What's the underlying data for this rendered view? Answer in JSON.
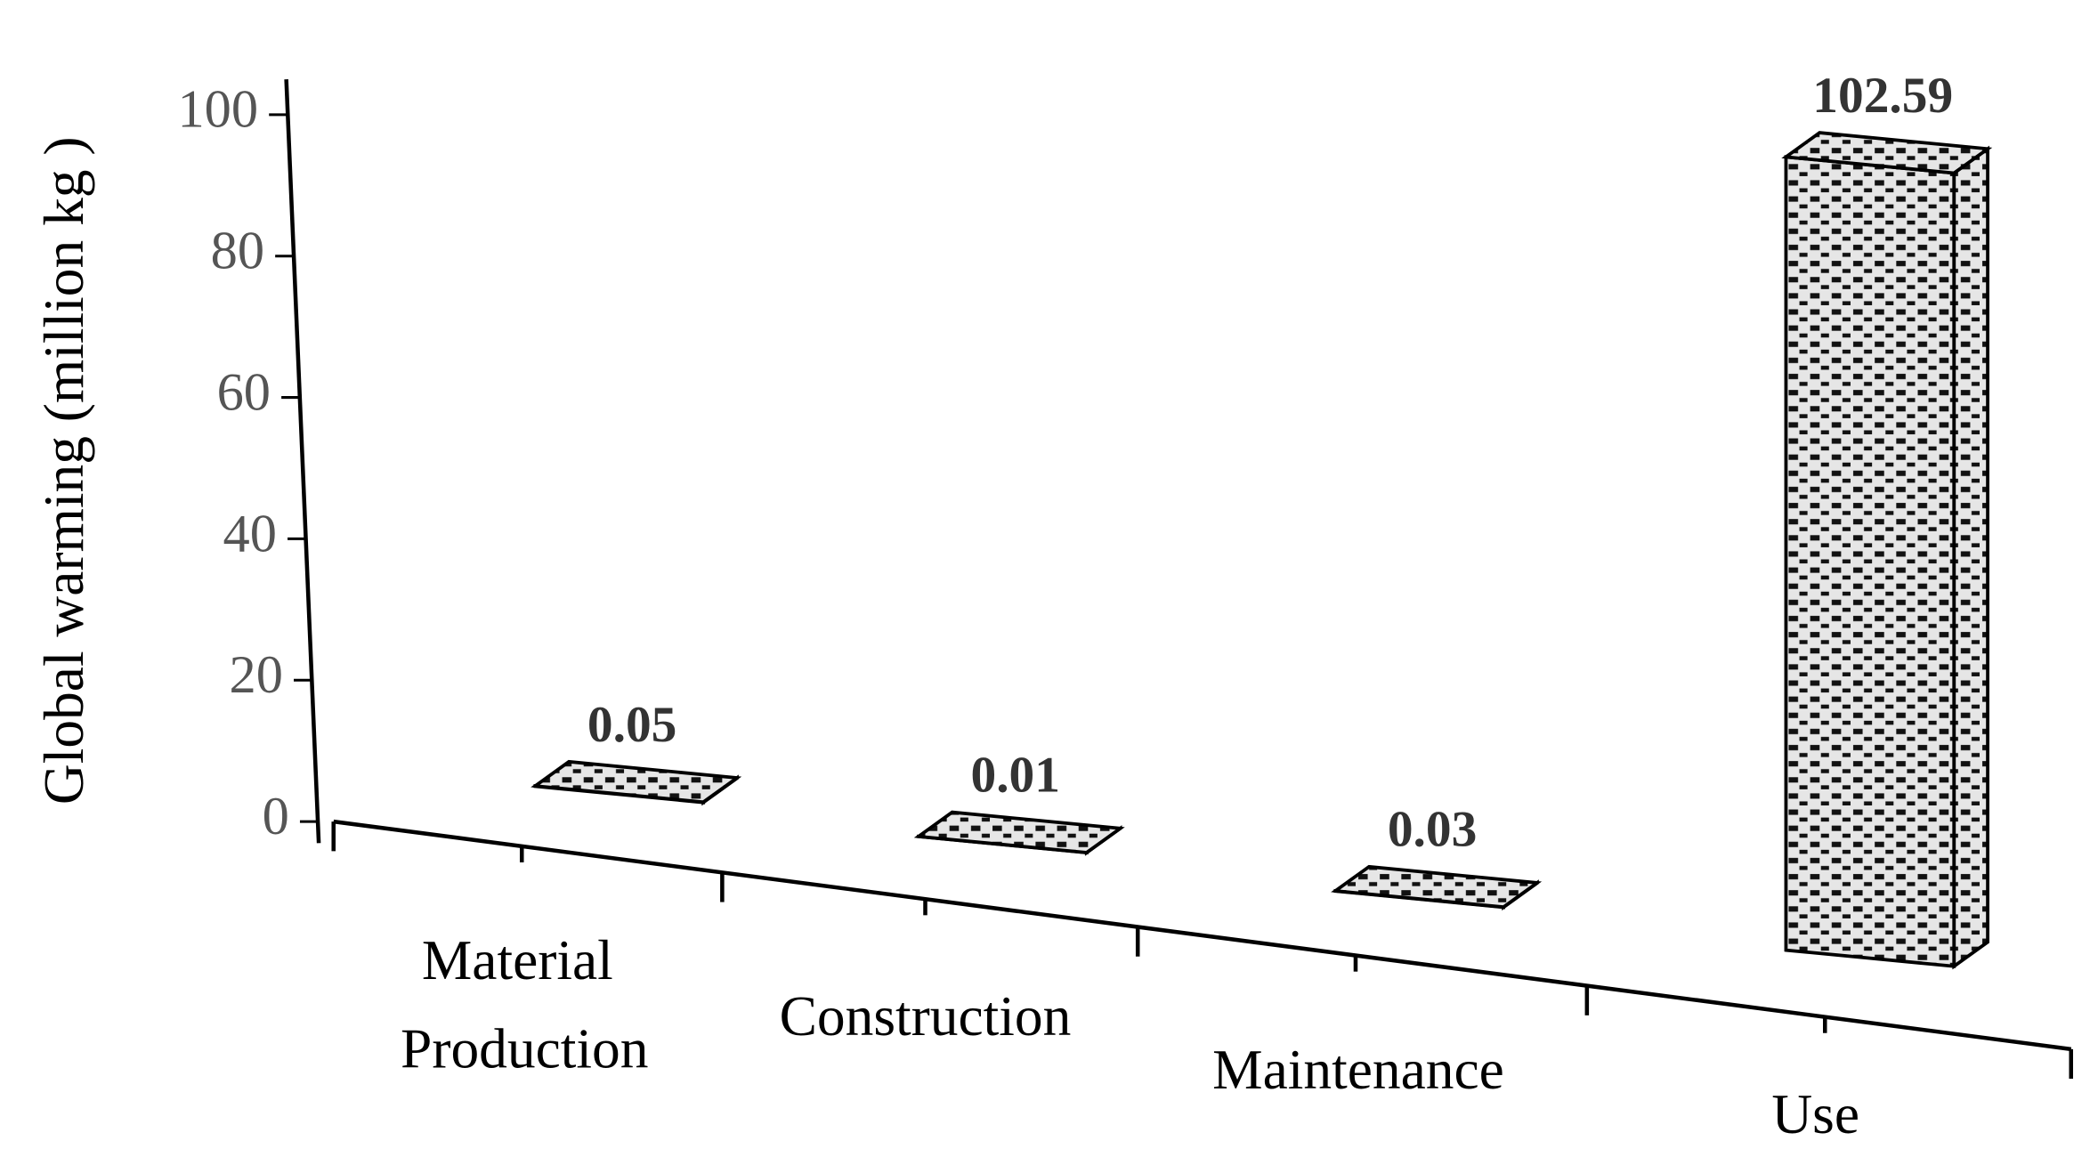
{
  "chart_data": {
    "type": "bar3d",
    "y_label": "Global warming (million kg )",
    "categories": [
      "Material Production",
      "Construction",
      "Maintenance",
      "Use"
    ],
    "values": [
      0.05,
      0.01,
      0.03,
      102.59
    ],
    "ylim": [
      0,
      105
    ],
    "yticks": [
      0,
      20,
      40,
      60,
      80,
      100
    ]
  }
}
